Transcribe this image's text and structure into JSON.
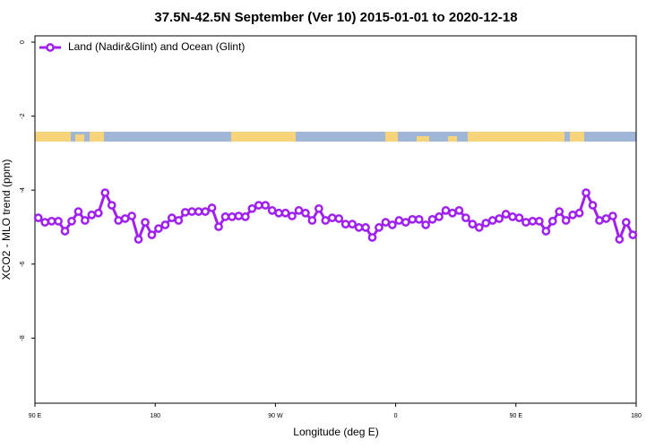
{
  "chart_data": {
    "type": "line",
    "title": "37.5N-42.5N September (Ver 10)   2015-01-01 to 2020-12-18",
    "x_label": "Longitude (deg E)",
    "y_label": "XCO2 - MLO trend (ppm)",
    "xlim": [
      90,
      540
    ],
    "xticks": [
      {
        "value": 90,
        "label": "90 E"
      },
      180,
      {
        "value": 270,
        "label": "90 W"
      },
      {
        "value": 360,
        "label": "0"
      },
      {
        "value": 450,
        "label": "90 E"
      },
      {
        "value": 540,
        "label": "180"
      }
    ],
    "ylim": [
      -9.76,
      0.17
    ],
    "yticks": [
      0,
      -2,
      -4,
      -6,
      -8
    ],
    "legend": "top-left",
    "x": [
      92.5,
      97.5,
      102.5,
      107.5,
      112.5,
      117.5,
      122.5,
      127.5,
      132.5,
      137.5,
      142.5,
      147.5,
      152.5,
      157.5,
      162.5,
      167.5,
      172.5,
      177.5,
      182.5,
      187.5,
      192.5,
      197.5,
      202.5,
      207.5,
      212.5,
      217.5,
      222.5,
      227.5,
      232.5,
      237.5,
      242.5,
      247.5,
      252.5,
      257.5,
      262.5,
      267.5,
      272.5,
      277.5,
      282.5,
      287.5,
      292.5,
      297.5,
      302.5,
      307.5,
      312.5,
      317.5,
      322.5,
      327.5,
      332.5,
      337.5,
      342.5,
      347.5,
      352.5,
      357.5,
      362.5,
      367.5,
      372.5,
      377.5,
      382.5,
      387.5,
      392.5,
      397.5,
      402.5,
      407.5,
      412.5,
      417.5,
      422.5,
      427.5,
      432.5,
      437.5,
      442.5,
      447.5,
      452.5,
      457.5,
      462.5,
      467.5,
      472.5,
      477.5,
      482.5,
      487.5,
      492.5,
      497.5,
      502.5,
      507.5,
      512.5,
      517.5,
      522.5,
      527.5,
      532.5,
      537.5
    ],
    "series": [
      {
        "name": "Land (Nadir&Glint) and Ocean (Glint)",
        "color": "#a020f0",
        "values": [
          -4.75,
          -4.87,
          -4.84,
          -4.84,
          -5.11,
          -4.84,
          -4.58,
          -4.82,
          -4.67,
          -4.62,
          -4.07,
          -4.41,
          -4.82,
          -4.77,
          -4.7,
          -5.33,
          -4.87,
          -5.21,
          -5.04,
          -4.94,
          -4.75,
          -4.82,
          -4.6,
          -4.58,
          -4.58,
          -4.58,
          -4.48,
          -4.99,
          -4.72,
          -4.72,
          -4.7,
          -4.72,
          -4.5,
          -4.41,
          -4.41,
          -4.55,
          -4.62,
          -4.62,
          -4.7,
          -4.55,
          -4.62,
          -4.82,
          -4.5,
          -4.82,
          -4.75,
          -4.77,
          -4.92,
          -4.92,
          -5.01,
          -5.01,
          -5.28,
          -5.01,
          -4.87,
          -4.94,
          -4.82,
          -4.87,
          -4.79,
          -4.79,
          -4.94,
          -4.79,
          -4.72,
          -4.55,
          -4.62,
          -4.55,
          -4.75,
          -4.92,
          -5.01,
          -4.89,
          -4.82,
          -4.77,
          -4.65,
          -4.72,
          -4.75,
          -4.87,
          -4.84,
          -4.84,
          -5.11,
          -4.84,
          -4.58,
          -4.82,
          -4.67,
          -4.62,
          -4.07,
          -4.41,
          -4.82,
          -4.77,
          -4.7,
          -5.33,
          -4.87,
          -5.21
        ]
      }
    ]
  }
}
